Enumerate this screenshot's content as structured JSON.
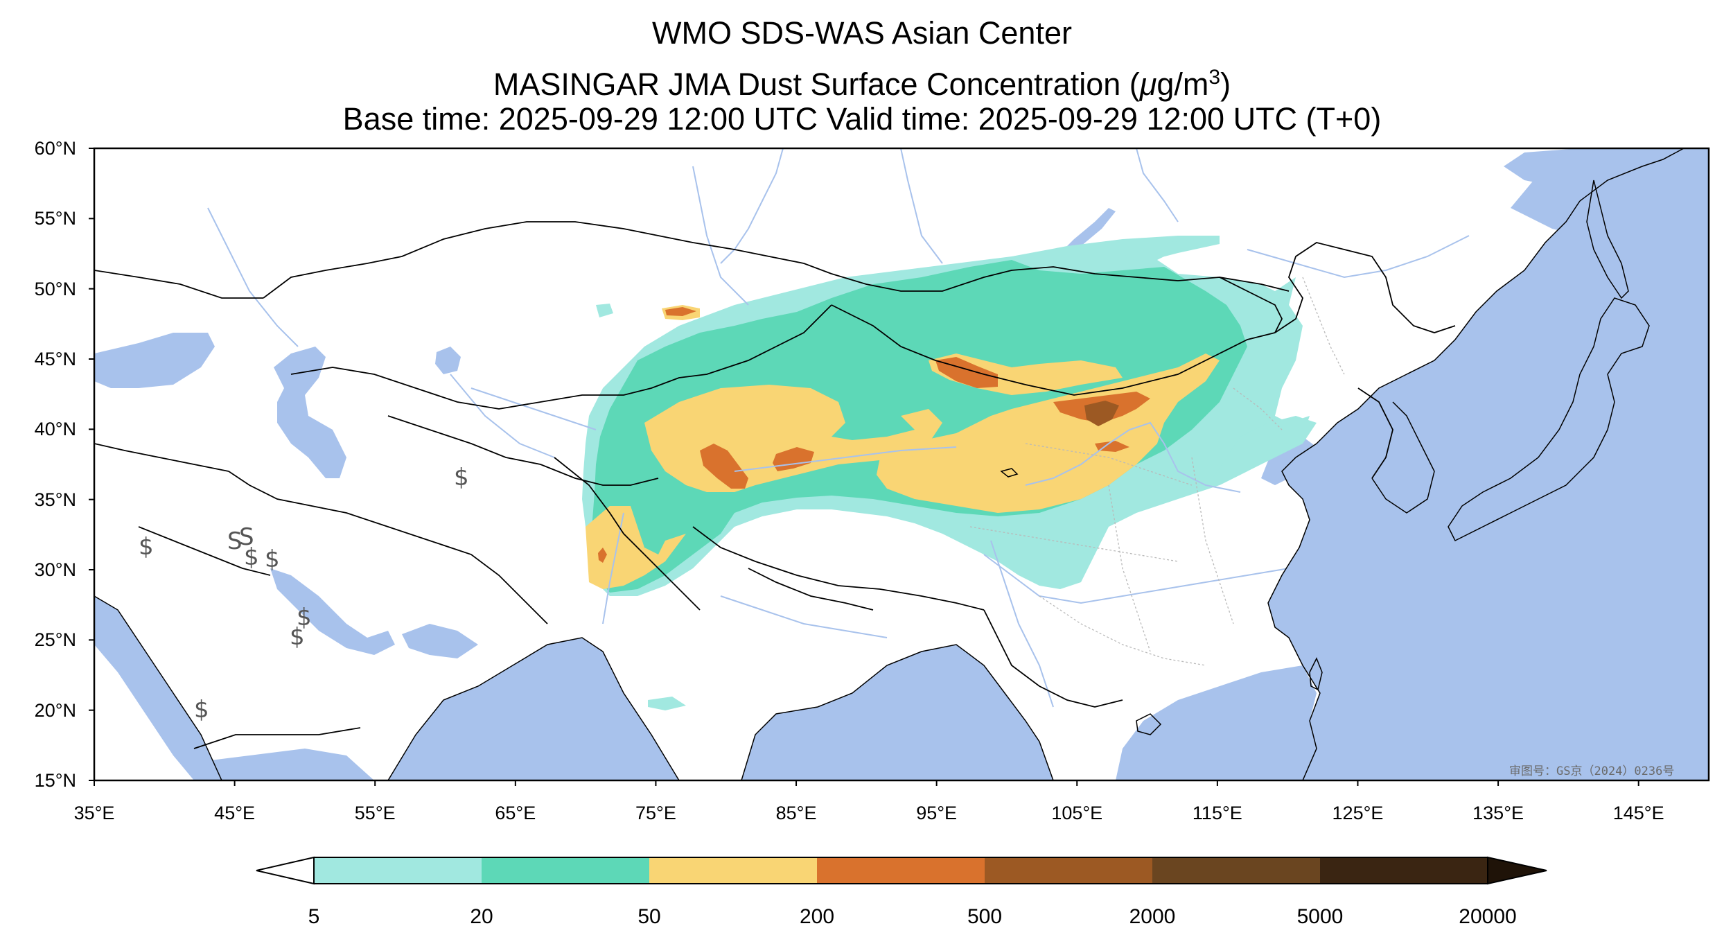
{
  "title": {
    "line1": "WMO SDS-WAS Asian Center",
    "line2_prefix": "MASINGAR JMA Dust Surface Concentration (",
    "line2_mu": "μ",
    "line2_unit": "g/m",
    "line2_sup": "3",
    "line2_suffix": ")",
    "line3": "Base time: 2025-09-29 12:00 UTC Valid time: 2025-09-29 12:00 UTC (T+0)"
  },
  "map": {
    "lon_range": [
      35,
      150
    ],
    "lat_range": [
      15,
      60
    ],
    "lat_ticks": [
      "60°N",
      "55°N",
      "50°N",
      "45°N",
      "40°N",
      "35°N",
      "30°N",
      "25°N",
      "20°N",
      "15°N"
    ],
    "lon_ticks": [
      "35°E",
      "45°E",
      "55°E",
      "65°E",
      "75°E",
      "85°E",
      "95°E",
      "105°E",
      "115°E",
      "125°E",
      "135°E",
      "145°E"
    ],
    "approval_text": "审图号：GS京（2024）0236号",
    "colors": {
      "ocean": "#a8c2ec",
      "land": "#ffffff",
      "border": "#000000",
      "river": "#a8c2ec"
    }
  },
  "colorbar": {
    "levels": [
      "5",
      "20",
      "50",
      "200",
      "500",
      "2000",
      "5000",
      "20000"
    ],
    "colors": [
      "#a1e8e0",
      "#5dd8b7",
      "#f9d574",
      "#d9722d",
      "#9c5923",
      "#6a4520",
      "#3a2512"
    ],
    "under_color": "#ffffff",
    "over_color": "#1f1308"
  }
}
